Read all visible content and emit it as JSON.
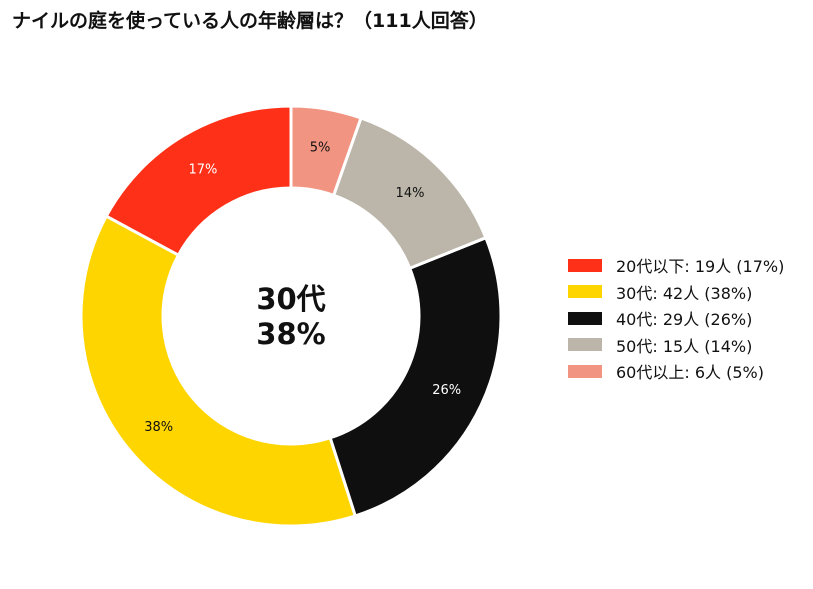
{
  "chart_data": {
    "type": "pie",
    "title": "ナイルの庭を使っている人の年齢層は？（111人回答）",
    "center_label": {
      "line1": "30代",
      "line2": "38%"
    },
    "slices": [
      {
        "label": "20代以下",
        "count": 19,
        "percent": 17,
        "legend_text": "20代以下:  19人 (17%)",
        "slice_label": "17%",
        "color": "#ff3018",
        "label_color": "#ffffff"
      },
      {
        "label": "30代",
        "count": 42,
        "percent": 38,
        "legend_text": "30代:  42人 (38%)",
        "slice_label": "38%",
        "color": "#ffd500",
        "label_color": "#111111"
      },
      {
        "label": "40代",
        "count": 29,
        "percent": 26,
        "legend_text": "40代:  29人 (26%)",
        "slice_label": "26%",
        "color": "#0f0f0f",
        "label_color": "#ffffff"
      },
      {
        "label": "50代",
        "count": 15,
        "percent": 14,
        "legend_text": "50代:  15人 (14%)",
        "slice_label": "14%",
        "color": "#bbb6a9",
        "label_color": "#111111"
      },
      {
        "label": "60代以上",
        "count": 6,
        "percent": 5,
        "legend_text": "60代以上:  6人 (5%)",
        "slice_label": "5%",
        "color": "#f29482",
        "label_color": "#111111"
      }
    ],
    "donut": true,
    "start_angle": "12 o'clock",
    "direction": "counter-clockwise",
    "legend_position": "right"
  }
}
